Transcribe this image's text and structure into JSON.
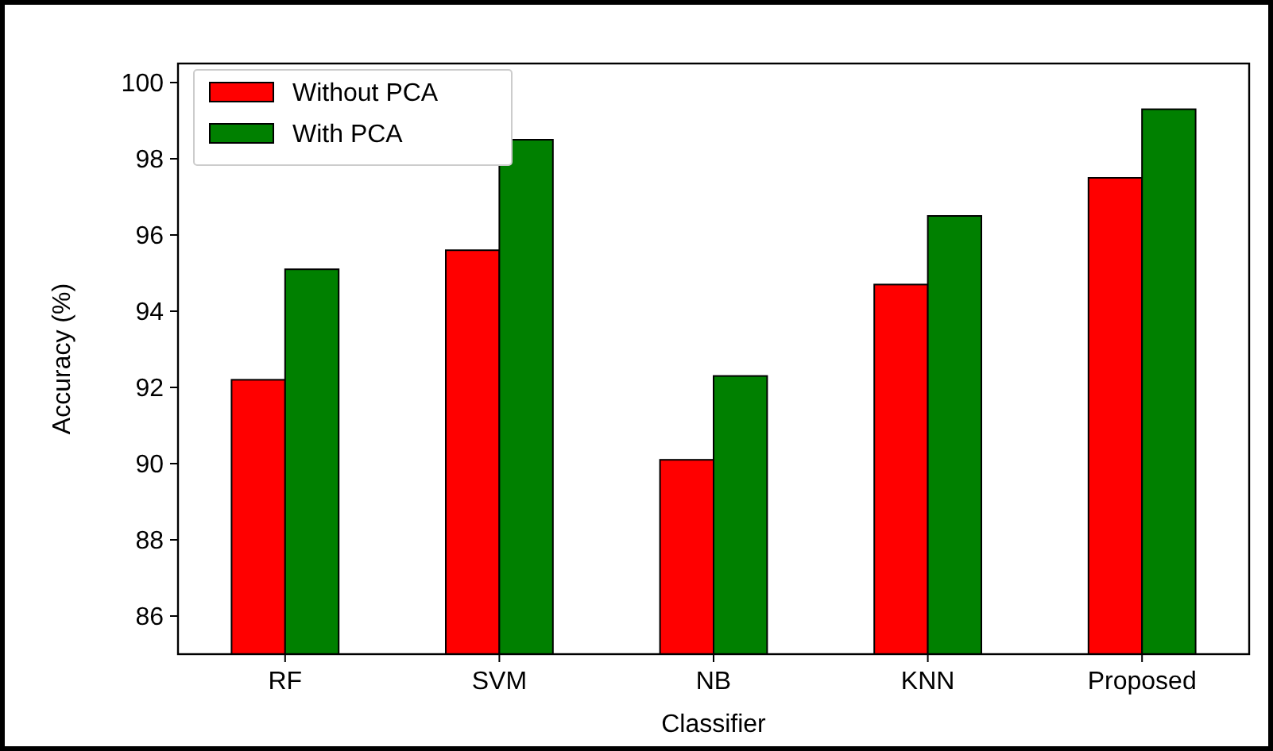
{
  "chart_data": {
    "type": "bar",
    "xlabel": "Classifier",
    "ylabel": "Accuracy (%)",
    "categories": [
      "RF",
      "SVM",
      "NB",
      "KNN",
      "Proposed"
    ],
    "series": [
      {
        "name": "Without PCA",
        "color": "#ff0000",
        "values": [
          92.2,
          95.6,
          90.1,
          94.7,
          97.5
        ]
      },
      {
        "name": "With PCA",
        "color": "#008000",
        "values": [
          95.1,
          98.5,
          92.3,
          96.5,
          99.3
        ]
      }
    ],
    "ylim": [
      85,
      100.5
    ],
    "yticks": [
      86,
      88,
      90,
      92,
      94,
      96,
      98,
      100
    ],
    "grid": false,
    "legend": "top left"
  }
}
